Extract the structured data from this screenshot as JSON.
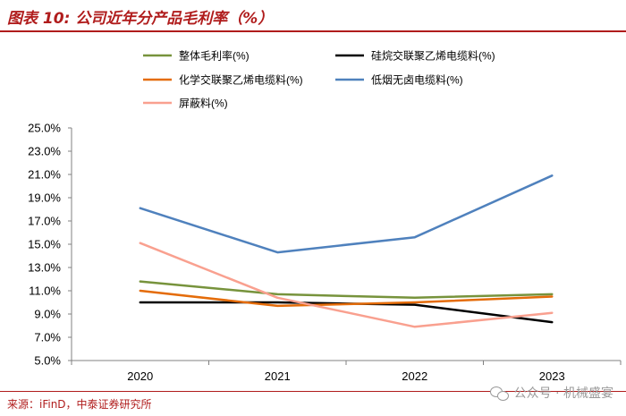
{
  "header": {
    "title": "图表 10: 公司近年分产品毛利率（%）"
  },
  "footer": {
    "source": "来源：iFinD，中泰证券研究所",
    "watermark": "公众号 · 机械盛宴"
  },
  "chart_data": {
    "type": "line",
    "title": "图表 10: 公司近年分产品毛利率（%）",
    "xlabel": "",
    "ylabel": "",
    "categories": [
      "2020",
      "2021",
      "2022",
      "2023"
    ],
    "ylim": [
      5.0,
      25.0
    ],
    "yticks": [
      "25.0%",
      "23.0%",
      "21.0%",
      "19.0%",
      "17.0%",
      "15.0%",
      "13.0%",
      "11.0%",
      "9.0%",
      "7.0%",
      "5.0%"
    ],
    "ytick_values": [
      25,
      23,
      21,
      19,
      17,
      15,
      13,
      11,
      9,
      7,
      5
    ],
    "grid": false,
    "legend_position": "top",
    "series": [
      {
        "name": "整体毛利率(%)",
        "color": "#77933c",
        "values": [
          11.8,
          10.7,
          10.4,
          10.7
        ]
      },
      {
        "name": "硅烷交联聚乙烯电缆料(%)",
        "color": "#000000",
        "values": [
          10.0,
          10.0,
          9.8,
          8.3
        ]
      },
      {
        "name": "化学交联聚乙烯电缆料(%)",
        "color": "#e46c0a",
        "values": [
          11.0,
          9.7,
          10.0,
          10.5
        ]
      },
      {
        "name": "低烟无卤电缆料(%)",
        "color": "#4f81bd",
        "values": [
          18.1,
          14.3,
          15.6,
          20.9
        ]
      },
      {
        "name": "屏蔽料(%)",
        "color": "#f9a08f",
        "values": [
          15.1,
          10.4,
          7.9,
          9.1
        ]
      }
    ]
  }
}
